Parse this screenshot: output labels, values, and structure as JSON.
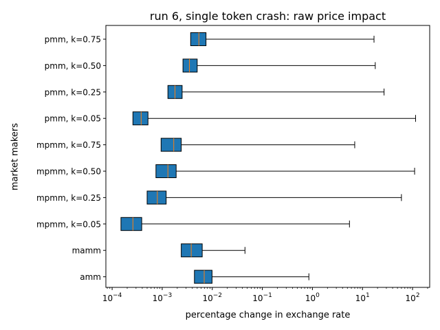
{
  "chart_data": {
    "type": "boxplot",
    "orientation": "horizontal",
    "title": "run 6, single token crash: raw price impact",
    "xlabel": "percentage change in exchange rate",
    "ylabel": "market makers",
    "xscale": "log",
    "xlim": [
      7.5e-05,
      220
    ],
    "x_tick_values": [
      0.0001,
      0.001,
      0.01,
      0.1,
      1,
      10,
      100
    ],
    "x_tick_labels": [
      {
        "base": "10",
        "exp": "−4"
      },
      {
        "base": "10",
        "exp": "−3"
      },
      {
        "base": "10",
        "exp": "−2"
      },
      {
        "base": "10",
        "exp": "−1"
      },
      {
        "base": "10",
        "exp": "0"
      },
      {
        "base": "10",
        "exp": "1"
      },
      {
        "base": "10",
        "exp": "2"
      }
    ],
    "grid": false,
    "legend": "none",
    "box_color": "#1f77b4",
    "median_color": "#ff7f0e",
    "categories": [
      "pmm, k=0.75",
      "pmm, k=0.50",
      "pmm, k=0.25",
      "pmm, k=0.05",
      "mpmm, k=0.75",
      "mpmm, k=0.50",
      "mpmm, k=0.25",
      "mpmm, k=0.05",
      "mamm",
      "amm"
    ],
    "boxes": [
      {
        "whislo": 0.0037,
        "q1": 0.0037,
        "med": 0.0054,
        "q3": 0.0075,
        "whishi": 17
      },
      {
        "whislo": 0.0026,
        "q1": 0.0026,
        "med": 0.0035,
        "q3": 0.005,
        "whishi": 18
      },
      {
        "whislo": 0.0013,
        "q1": 0.0013,
        "med": 0.0018,
        "q3": 0.0025,
        "whishi": 27
      },
      {
        "whislo": 0.00026,
        "q1": 0.00026,
        "med": 0.00038,
        "q3": 0.00052,
        "whishi": 115
      },
      {
        "whislo": 0.00095,
        "q1": 0.00095,
        "med": 0.0017,
        "q3": 0.0024,
        "whishi": 7
      },
      {
        "whislo": 0.00075,
        "q1": 0.00075,
        "med": 0.0013,
        "q3": 0.0019,
        "whishi": 110
      },
      {
        "whislo": 0.0005,
        "q1": 0.0005,
        "med": 0.0008,
        "q3": 0.0012,
        "whishi": 60
      },
      {
        "whislo": 0.00015,
        "q1": 0.00015,
        "med": 0.00026,
        "q3": 0.00039,
        "whishi": 5.5
      },
      {
        "whislo": 0.0024,
        "q1": 0.0024,
        "med": 0.0038,
        "q3": 0.0063,
        "whishi": 0.045
      },
      {
        "whislo": 0.0044,
        "q1": 0.0044,
        "med": 0.0069,
        "q3": 0.0099,
        "whishi": 0.85
      }
    ]
  }
}
